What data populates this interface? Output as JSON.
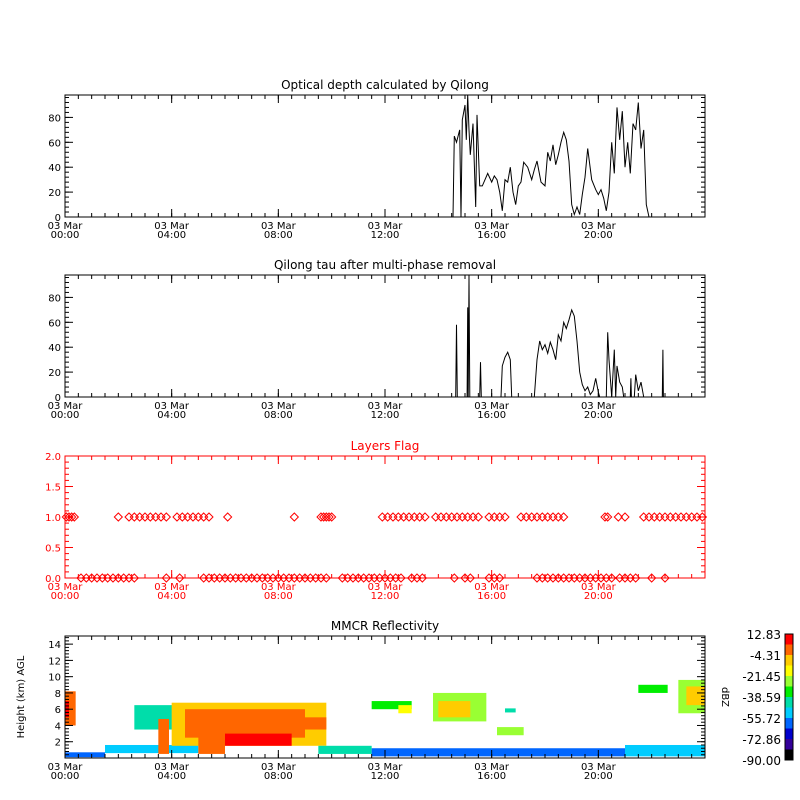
{
  "chart_data": [
    {
      "type": "line",
      "title": "Optical depth calculated by Qilong",
      "xlim": [
        0,
        24
      ],
      "ylim": [
        0,
        98
      ],
      "yticks": [
        0,
        20,
        40,
        60,
        80
      ],
      "xticks": [
        {
          "line1": "03 Mar",
          "line2": "00:00",
          "value": 0
        },
        {
          "line1": "03 Mar",
          "line2": "04:00",
          "value": 4
        },
        {
          "line1": "03 Mar",
          "line2": "08:00",
          "value": 8
        },
        {
          "line1": "03 Mar",
          "line2": "12:00",
          "value": 12
        },
        {
          "line1": "03 Mar",
          "line2": "16:00",
          "value": 16
        },
        {
          "line1": "03 Mar",
          "line2": "20:00",
          "value": 20
        }
      ],
      "series": [
        {
          "x": [
            14.55,
            14.6,
            14.68,
            14.8,
            14.85,
            14.9,
            15.0,
            15.05,
            15.1,
            15.15,
            15.2,
            15.3,
            15.4,
            15.45,
            15.55,
            15.65,
            15.75,
            15.85,
            16.0,
            16.1,
            16.2,
            16.3,
            16.4,
            16.5,
            16.6,
            16.7,
            16.8,
            16.9,
            17.0,
            17.1,
            17.2,
            17.35,
            17.5,
            17.6,
            17.7,
            17.85,
            18.0,
            18.1,
            18.2,
            18.3,
            18.4,
            18.5,
            18.6,
            18.7,
            18.8,
            18.9,
            19.0,
            19.1,
            19.2,
            19.3,
            19.4,
            19.5,
            19.6,
            19.75,
            19.9,
            20.0,
            20.1,
            20.2,
            20.3,
            20.4,
            20.5,
            20.6,
            20.7,
            20.8,
            20.9,
            21.0,
            21.1,
            21.2,
            21.3,
            21.4,
            21.5,
            21.6,
            21.7,
            21.8,
            21.9,
            22.0,
            22.1,
            22.2,
            22.3,
            22.4,
            22.5,
            22.6,
            22.7,
            22.8,
            22.9,
            23.0,
            23.1,
            23.15,
            23.2
          ],
          "y": [
            0,
            65,
            60,
            70,
            0,
            78,
            90,
            62,
            98,
            70,
            50,
            75,
            8,
            82,
            25,
            25,
            30,
            35,
            28,
            33,
            30,
            20,
            5,
            30,
            28,
            40,
            20,
            10,
            25,
            28,
            44,
            40,
            30,
            38,
            45,
            28,
            25,
            52,
            45,
            58,
            42,
            50,
            60,
            68,
            62,
            45,
            10,
            2,
            8,
            2,
            18,
            32,
            55,
            30,
            22,
            18,
            22,
            15,
            5,
            20,
            60,
            35,
            88,
            62,
            85,
            40,
            60,
            35,
            75,
            70,
            92,
            55,
            70,
            10,
            0,
            0,
            0,
            0,
            0,
            0,
            0,
            0,
            0,
            0,
            0,
            0,
            0,
            0,
            0
          ]
        }
      ]
    },
    {
      "type": "line",
      "title": "Qilong tau after multi-phase removal",
      "xlim": [
        0,
        24
      ],
      "ylim": [
        0,
        98
      ],
      "yticks": [
        0,
        20,
        40,
        60,
        80
      ],
      "xticks": [
        {
          "line1": "03 Mar",
          "line2": "00:00",
          "value": 0
        },
        {
          "line1": "03 Mar",
          "line2": "04:00",
          "value": 4
        },
        {
          "line1": "03 Mar",
          "line2": "08:00",
          "value": 8
        },
        {
          "line1": "03 Mar",
          "line2": "12:00",
          "value": 12
        },
        {
          "line1": "03 Mar",
          "line2": "16:00",
          "value": 16
        },
        {
          "line1": "03 Mar",
          "line2": "20:00",
          "value": 20
        }
      ],
      "series": [
        {
          "x": [
            14.65,
            14.68,
            14.71,
            15.08,
            15.1,
            15.12,
            15.15,
            15.18,
            15.2,
            15.55,
            15.58,
            15.61,
            16.35,
            16.4,
            16.5,
            16.6,
            16.7,
            16.75,
            17.6,
            17.7,
            17.8,
            17.9,
            18.0,
            18.1,
            18.2,
            18.3,
            18.4,
            18.5,
            18.6,
            18.7,
            18.8,
            18.9,
            19.0,
            19.1,
            19.2,
            19.3,
            19.4,
            19.5,
            19.6,
            19.7,
            19.8,
            19.9,
            20.0,
            20.05,
            20.3,
            20.35,
            20.4,
            20.5,
            20.6,
            20.65,
            20.7,
            20.8,
            20.9,
            20.95,
            21.2,
            21.22,
            21.24,
            21.35,
            21.4,
            21.5,
            21.6,
            21.7,
            22.4,
            22.42,
            22.44
          ],
          "y": [
            0,
            58,
            0,
            0,
            72,
            0,
            98,
            0,
            0,
            0,
            28,
            0,
            0,
            25,
            32,
            36,
            30,
            0,
            0,
            30,
            45,
            38,
            42,
            35,
            44,
            38,
            30,
            50,
            45,
            60,
            55,
            62,
            70,
            65,
            45,
            20,
            10,
            5,
            8,
            2,
            5,
            15,
            4,
            0,
            0,
            52,
            30,
            0,
            38,
            0,
            25,
            12,
            8,
            0,
            0,
            15,
            0,
            0,
            18,
            5,
            12,
            0,
            0,
            38,
            0
          ]
        }
      ]
    },
    {
      "type": "scatter",
      "title": "Layers Flag",
      "xlim": [
        0,
        24
      ],
      "ylim": [
        0,
        2
      ],
      "yticks": [
        "0.0",
        "0.5",
        "1.0",
        "1.5",
        "2.0"
      ],
      "xticks": [
        {
          "line1": "03 Mar",
          "line2": "00:00",
          "value": 0
        },
        {
          "line1": "03 Mar",
          "line2": "04:00",
          "value": 4
        },
        {
          "line1": "03 Mar",
          "line2": "08:00",
          "value": 8
        },
        {
          "line1": "03 Mar",
          "line2": "12:00",
          "value": 12
        },
        {
          "line1": "03 Mar",
          "line2": "16:00",
          "value": 16
        },
        {
          "line1": "03 Mar",
          "line2": "20:00",
          "value": 20
        }
      ],
      "marker": "diamond",
      "color": "#ff0000",
      "series": [
        {
          "x": [
            0.05,
            0.15,
            0.25,
            0.35,
            2.0,
            2.4,
            2.6,
            2.8,
            3.0,
            3.2,
            3.4,
            3.6,
            3.8,
            4.2,
            4.4,
            4.6,
            4.8,
            5.0,
            5.2,
            5.4,
            6.1,
            8.6,
            9.6,
            9.7,
            9.8,
            9.9,
            10.0,
            11.9,
            12.1,
            12.3,
            12.5,
            12.7,
            12.9,
            13.1,
            13.3,
            13.5,
            13.9,
            14.1,
            14.3,
            14.5,
            14.7,
            14.9,
            15.1,
            15.3,
            15.5,
            15.9,
            16.1,
            16.3,
            16.5,
            17.1,
            17.3,
            17.5,
            17.7,
            17.9,
            18.1,
            18.3,
            18.5,
            18.7,
            20.25,
            20.35,
            20.75,
            21.0,
            21.7,
            21.9,
            22.1,
            22.3,
            22.5,
            22.7,
            22.9,
            23.1,
            23.3,
            23.5,
            23.7,
            23.9
          ],
          "y": [
            1,
            1,
            1,
            1,
            1,
            1,
            1,
            1,
            1,
            1,
            1,
            1,
            1,
            1,
            1,
            1,
            1,
            1,
            1,
            1,
            1,
            1,
            1,
            1,
            1,
            1,
            1,
            1,
            1,
            1,
            1,
            1,
            1,
            1,
            1,
            1,
            1,
            1,
            1,
            1,
            1,
            1,
            1,
            1,
            1,
            1,
            1,
            1,
            1,
            1,
            1,
            1,
            1,
            1,
            1,
            1,
            1,
            1,
            1,
            1,
            1,
            1,
            1,
            1,
            1,
            1,
            1,
            1,
            1,
            1,
            1,
            1,
            1,
            1
          ]
        },
        {
          "x": [
            0.6,
            0.8,
            1.0,
            1.2,
            1.4,
            1.6,
            1.8,
            2.0,
            2.2,
            2.4,
            2.6,
            3.8,
            4.3,
            5.2,
            5.4,
            5.6,
            5.8,
            6.0,
            6.2,
            6.4,
            6.6,
            6.8,
            7.0,
            7.2,
            7.4,
            7.6,
            7.8,
            8.0,
            8.2,
            8.4,
            8.6,
            8.8,
            9.0,
            9.2,
            9.4,
            9.6,
            9.8,
            10.4,
            10.6,
            10.8,
            11.0,
            11.2,
            11.4,
            11.6,
            11.8,
            12.0,
            12.2,
            12.4,
            12.6,
            13.0,
            13.2,
            13.4,
            14.6,
            15.0,
            15.2,
            15.9,
            16.1,
            16.3,
            17.7,
            17.9,
            18.1,
            18.3,
            18.5,
            18.7,
            18.9,
            19.1,
            19.3,
            19.5,
            19.7,
            19.9,
            20.1,
            20.3,
            20.5,
            20.8,
            21.0,
            21.2,
            21.4,
            22.0,
            22.5
          ],
          "y": [
            0,
            0,
            0,
            0,
            0,
            0,
            0,
            0,
            0,
            0,
            0,
            0,
            0,
            0,
            0,
            0,
            0,
            0,
            0,
            0,
            0,
            0,
            0,
            0,
            0,
            0,
            0,
            0,
            0,
            0,
            0,
            0,
            0,
            0,
            0,
            0,
            0,
            0,
            0,
            0,
            0,
            0,
            0,
            0,
            0,
            0,
            0,
            0,
            0,
            0,
            0,
            0,
            0,
            0,
            0,
            0,
            0,
            0,
            0,
            0,
            0,
            0,
            0,
            0,
            0,
            0,
            0,
            0,
            0,
            0,
            0,
            0,
            0,
            0,
            0,
            0,
            0,
            0,
            0
          ]
        }
      ]
    },
    {
      "type": "heatmap",
      "title": "MMCR Reflectivity",
      "ylabel": "Height (km) AGL",
      "xlim": [
        0,
        24
      ],
      "ylim": [
        0,
        15
      ],
      "yticks": [
        2,
        4,
        6,
        8,
        10,
        12,
        14
      ],
      "xticks": [
        {
          "line1": "03 Mar",
          "line2": "00:00",
          "value": 0
        },
        {
          "line1": "03 Mar",
          "line2": "04:00",
          "value": 4
        },
        {
          "line1": "03 Mar",
          "line2": "08:00",
          "value": 8
        },
        {
          "line1": "03 Mar",
          "line2": "12:00",
          "value": 12
        },
        {
          "line1": "03 Mar",
          "line2": "16:00",
          "value": 16
        },
        {
          "line1": "03 Mar",
          "line2": "20:00",
          "value": 20
        }
      ],
      "colorbar": {
        "label": "dBZ",
        "ticks": [
          "12.83",
          "-4.31",
          "-21.45",
          "-38.59",
          "-55.72",
          "-72.86",
          "-90.00"
        ],
        "colors": [
          "#ff0000",
          "#ff6600",
          "#ffcc00",
          "#ffff00",
          "#99ff33",
          "#00ee00",
          "#00ddaa",
          "#00ccff",
          "#0066ff",
          "#0000cc",
          "#330099",
          "#000000"
        ]
      },
      "regions": [
        {
          "x0": 0.0,
          "x1": 0.4,
          "y0": 4.0,
          "y1": 8.2,
          "dbz": 0
        },
        {
          "x0": 0.0,
          "x1": 0.15,
          "y0": 5.0,
          "y1": 7.0,
          "dbz": 10
        },
        {
          "x0": 0.0,
          "x1": 1.5,
          "y0": 0.1,
          "y1": 0.7,
          "dbz": -60
        },
        {
          "x0": 1.5,
          "x1": 5.0,
          "y0": 0.6,
          "y1": 1.6,
          "dbz": -50
        },
        {
          "x0": 2.6,
          "x1": 4.2,
          "y0": 3.5,
          "y1": 6.5,
          "dbz": -40
        },
        {
          "x0": 3.5,
          "x1": 3.9,
          "y0": 0.5,
          "y1": 4.8,
          "dbz": 5
        },
        {
          "x0": 4.0,
          "x1": 9.8,
          "y0": 1.5,
          "y1": 6.8,
          "dbz": -10
        },
        {
          "x0": 4.5,
          "x1": 9.0,
          "y0": 2.5,
          "y1": 6.0,
          "dbz": 5
        },
        {
          "x0": 5.0,
          "x1": 6.0,
          "y0": 0.5,
          "y1": 3.5,
          "dbz": 8
        },
        {
          "x0": 6.0,
          "x1": 8.5,
          "y0": 1.5,
          "y1": 3.0,
          "dbz": 10
        },
        {
          "x0": 8.5,
          "x1": 9.8,
          "y0": 3.5,
          "y1": 5.0,
          "dbz": 0
        },
        {
          "x0": 9.5,
          "x1": 11.5,
          "y0": 0.5,
          "y1": 1.5,
          "dbz": -45
        },
        {
          "x0": 11.5,
          "x1": 13.0,
          "y0": 6.0,
          "y1": 7.0,
          "dbz": -35
        },
        {
          "x0": 12.5,
          "x1": 13.0,
          "y0": 5.5,
          "y1": 6.5,
          "dbz": -15
        },
        {
          "x0": 13.8,
          "x1": 15.8,
          "y0": 4.5,
          "y1": 8.0,
          "dbz": -20
        },
        {
          "x0": 14.0,
          "x1": 15.2,
          "y0": 5.0,
          "y1": 7.0,
          "dbz": -5
        },
        {
          "x0": 16.2,
          "x1": 17.2,
          "y0": 2.8,
          "y1": 3.8,
          "dbz": -25
        },
        {
          "x0": 16.5,
          "x1": 16.9,
          "y0": 5.6,
          "y1": 6.1,
          "dbz": -40
        },
        {
          "x0": 11.5,
          "x1": 21.0,
          "y0": 0.2,
          "y1": 1.2,
          "dbz": -60
        },
        {
          "x0": 21.0,
          "x1": 24.0,
          "y0": 0.2,
          "y1": 1.6,
          "dbz": -55
        },
        {
          "x0": 21.5,
          "x1": 22.6,
          "y0": 8.0,
          "y1": 9.0,
          "dbz": -30
        },
        {
          "x0": 23.0,
          "x1": 24.0,
          "y0": 5.5,
          "y1": 9.6,
          "dbz": -20
        },
        {
          "x0": 23.3,
          "x1": 24.0,
          "y0": 6.5,
          "y1": 8.8,
          "dbz": -5
        }
      ]
    }
  ]
}
